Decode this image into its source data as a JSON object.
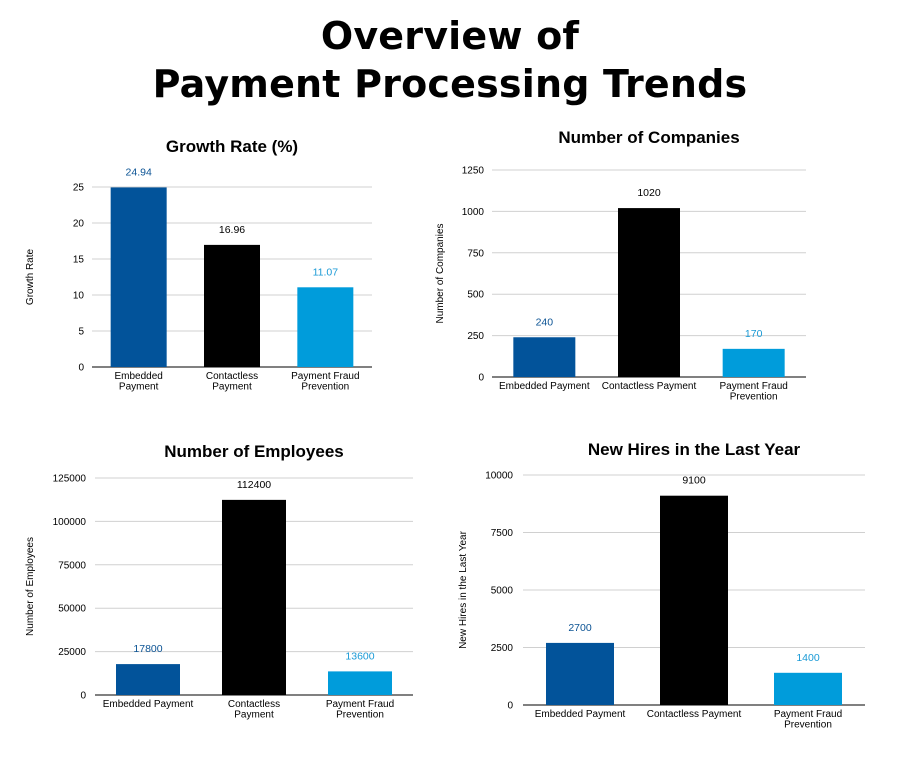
{
  "title": {
    "line1": "Overview of",
    "line2": "Payment Processing Trends"
  },
  "colors": {
    "embedded": "#02539a",
    "contactless": "#000000",
    "fraud": "#009cdb",
    "label_embedded": "#0b5394",
    "label_contactless": "#000000",
    "label_fraud": "#1a9ad6"
  },
  "chart_data": [
    {
      "type": "bar",
      "title": "Growth Rate (%)",
      "ylabel": "Growth Rate",
      "xlabel": "",
      "categories": [
        [
          "Embedded",
          "Payment"
        ],
        [
          "Contactless",
          "Payment"
        ],
        [
          "Payment Fraud",
          "Prevention"
        ]
      ],
      "values": [
        24.94,
        16.96,
        11.07
      ],
      "value_labels": [
        "24.94",
        "16.96",
        "11.07"
      ],
      "ylim": [
        0,
        25
      ],
      "yticks": [
        0,
        5,
        10,
        15,
        20,
        25
      ],
      "grid": true,
      "legend": "none"
    },
    {
      "type": "bar",
      "title": "Number of Companies",
      "ylabel": "Number of Companies",
      "xlabel": "",
      "categories": [
        [
          "Embedded Payment"
        ],
        [
          "Contactless Payment"
        ],
        [
          "Payment Fraud",
          "Prevention"
        ]
      ],
      "values": [
        240,
        1020,
        170
      ],
      "value_labels": [
        "240",
        "1020",
        "170"
      ],
      "ylim": [
        0,
        1250
      ],
      "yticks": [
        0,
        250,
        500,
        750,
        1000,
        1250
      ],
      "grid": true,
      "legend": "none"
    },
    {
      "type": "bar",
      "title": "Number of Employees",
      "ylabel": "Number of Employees",
      "xlabel": "",
      "categories": [
        [
          "Embedded Payment"
        ],
        [
          "Contactless",
          "Payment"
        ],
        [
          "Payment Fraud",
          "Prevention"
        ]
      ],
      "values": [
        17800,
        112400,
        13600
      ],
      "value_labels": [
        "17800",
        "112400",
        "13600"
      ],
      "ylim": [
        0,
        125000
      ],
      "yticks": [
        0,
        25000,
        50000,
        75000,
        100000,
        125000
      ],
      "grid": true,
      "legend": "none"
    },
    {
      "type": "bar",
      "title": "New Hires in the Last Year",
      "ylabel": "New Hires in the Last Year",
      "xlabel": "",
      "categories": [
        [
          "Embedded Payment"
        ],
        [
          "Contactless Payment"
        ],
        [
          "Payment Fraud",
          "Prevention"
        ]
      ],
      "values": [
        2700,
        9100,
        1400
      ],
      "value_labels": [
        "2700",
        "9100",
        "1400"
      ],
      "ylim": [
        0,
        10000
      ],
      "yticks": [
        0,
        2500,
        5000,
        7500,
        10000
      ],
      "grid": true,
      "legend": "none"
    }
  ]
}
